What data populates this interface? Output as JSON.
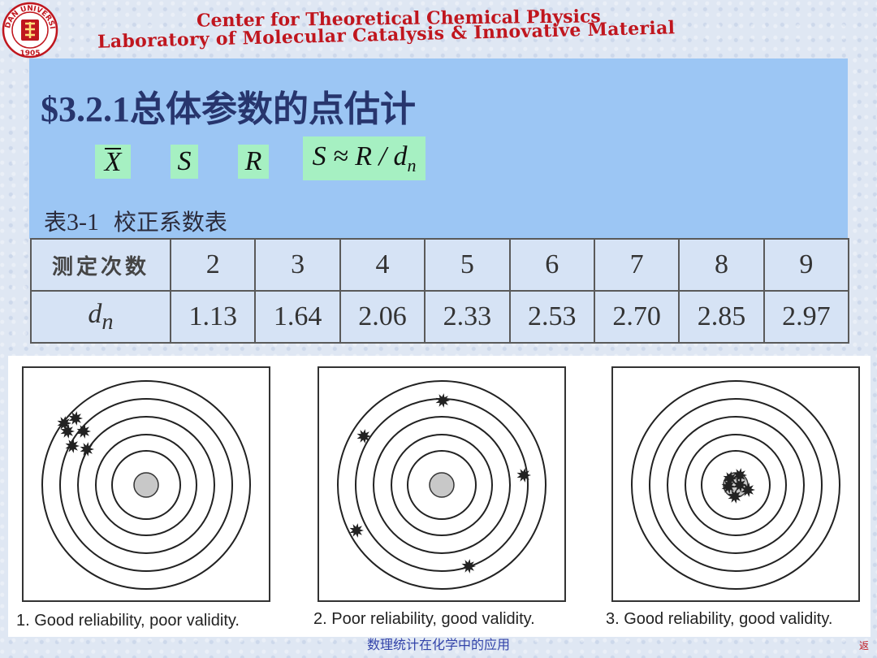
{
  "header": {
    "line1": "Center for Theoretical Chemical Physics",
    "line2": "Laboratory of Molecular Catalysis & Innovative Material",
    "logo": {
      "text_top": "FUDAN UNIVERSITY",
      "year": "1905",
      "icon": "university-seal-icon",
      "color": "#c0161e"
    }
  },
  "title": {
    "prefix": "$3.2.1",
    "text": "总体参数的点估计"
  },
  "symbols": {
    "xbar": "X",
    "s": "S",
    "r": "R",
    "formula": "S ≈ R / d",
    "formula_sub": "n"
  },
  "table": {
    "caption_prefix": "表",
    "caption_number": "3-1",
    "caption_text": "校正系数表",
    "row1_header": "测定次数",
    "row1": [
      "2",
      "3",
      "4",
      "5",
      "6",
      "7",
      "8",
      "9"
    ],
    "row2_header_main": "d",
    "row2_header_sub": "n",
    "row2": [
      "1.13",
      "1.64",
      "2.06",
      "2.33",
      "2.53",
      "2.70",
      "2.85",
      "2.97"
    ]
  },
  "figures": [
    {
      "caption": "1. Good reliability, poor validity."
    },
    {
      "caption": "2. Poor reliability, good validity."
    },
    {
      "caption": "3. Good reliability, good validity."
    }
  ],
  "footer": {
    "text": "数理统计在化学中的应用",
    "corner": "返"
  },
  "colors": {
    "panel": "#9cc6f4",
    "symbol_bg": "#a6f0c2",
    "header_red": "#c0161e",
    "title_navy": "#27356d"
  }
}
